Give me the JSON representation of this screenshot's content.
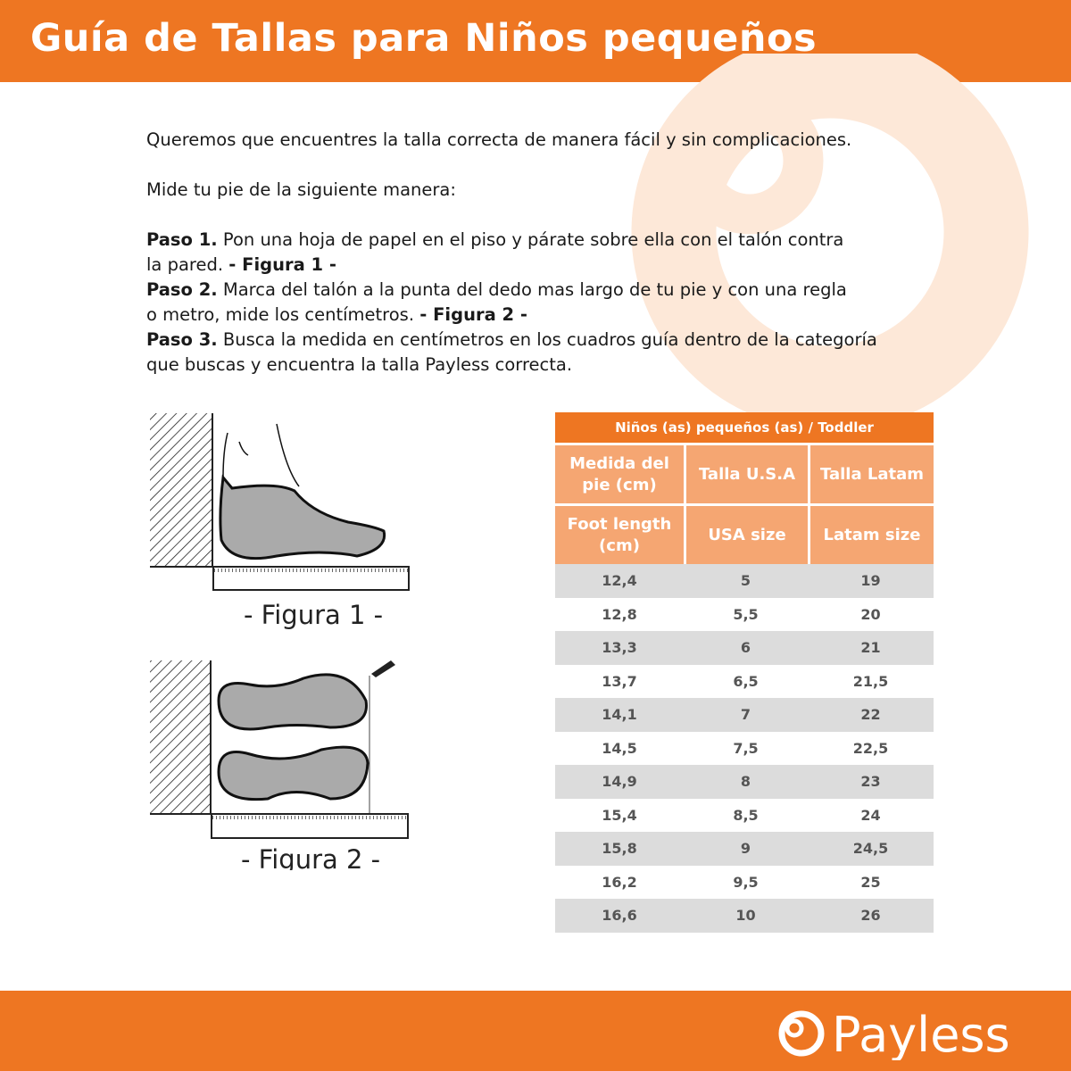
{
  "header": {
    "title": "Guía de Tallas para Niños pequeños"
  },
  "intro": {
    "line1": "Queremos que encuentres la talla correcta de manera fácil y sin complicaciones.",
    "line2": "Mide tu pie de la siguiente manera:",
    "steps": [
      {
        "label": "Paso 1.",
        "text1": " Pon una hoja de papel en el piso y párate sobre ella con el talón contra",
        "text2": "la pared. ",
        "fig": "- Figura 1 -"
      },
      {
        "label": "Paso 2.",
        "text1": " Marca del talón a la punta del dedo mas largo de tu pie y con una regla",
        "text2": "o metro, mide los centímetros. ",
        "fig": "- Figura 2 -"
      },
      {
        "label": "Paso 3.",
        "text1": " Busca la medida en centímetros en los cuadros guía dentro de la categoría",
        "text2": "que buscas y encuentra la talla Payless correcta."
      }
    ]
  },
  "figures": {
    "fig1_caption": "- Figura 1 -",
    "fig2_caption": "- Figura 2 -"
  },
  "table": {
    "title": "Niños (as) pequeños (as) / Toddler",
    "headers_es": [
      "Medida del pie (cm)",
      "Talla U.S.A",
      "Talla Latam"
    ],
    "headers_en": [
      "Foot length (cm)",
      "USA size",
      "Latam size"
    ],
    "rows": [
      [
        "12,4",
        "5",
        "19"
      ],
      [
        "12,8",
        "5,5",
        "20"
      ],
      [
        "13,3",
        "6",
        "21"
      ],
      [
        "13,7",
        "6,5",
        "21,5"
      ],
      [
        "14,1",
        "7",
        "22"
      ],
      [
        "14,5",
        "7,5",
        "22,5"
      ],
      [
        "14,9",
        "8",
        "23"
      ],
      [
        "15,4",
        "8,5",
        "24"
      ],
      [
        "15,8",
        "9",
        "24,5"
      ],
      [
        "16,2",
        "9,5",
        "25"
      ],
      [
        "16,6",
        "10",
        "26"
      ]
    ]
  },
  "footer": {
    "brand": "Payless"
  },
  "colors": {
    "brand": "#ee7622",
    "header_cell": "#f5a672",
    "row_gray": "#dcdcdc",
    "watermark": "#fde8d8"
  }
}
